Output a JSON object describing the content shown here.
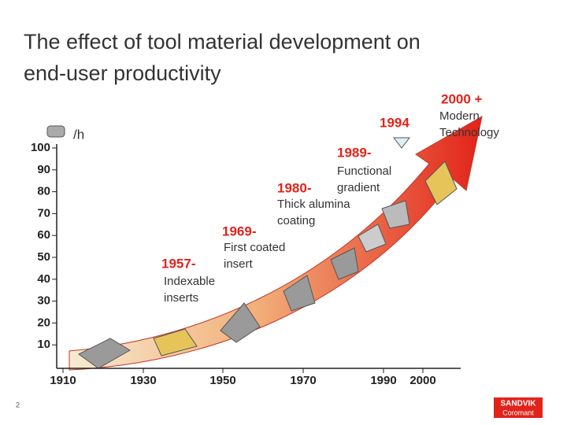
{
  "title": [
    "The effect of tool material development on",
    "end-user productivity"
  ],
  "unit": "/h",
  "yaxis": [
    "100",
    "90",
    "80",
    "70",
    "60",
    "50",
    "40",
    "30",
    "20",
    "10"
  ],
  "xaxis": [
    "1910",
    "1930",
    "1950",
    "1970",
    "1990",
    "2000"
  ],
  "milestones": [
    {
      "year": "1957-",
      "text": [
        "Indexable",
        "inserts"
      ]
    },
    {
      "year": "1969-",
      "text": [
        "First coated",
        "insert"
      ]
    },
    {
      "year": "1980-",
      "text": [
        "Thick alumina",
        "coating"
      ]
    },
    {
      "year": "1989-",
      "text": [
        "Functional",
        "gradient"
      ]
    },
    {
      "year": "1994",
      "text": []
    },
    {
      "year": "2000 +",
      "text": [
        "Modern",
        "Technology"
      ]
    }
  ],
  "page": "2",
  "logo": [
    "SANDVIK",
    "Coromant"
  ]
}
